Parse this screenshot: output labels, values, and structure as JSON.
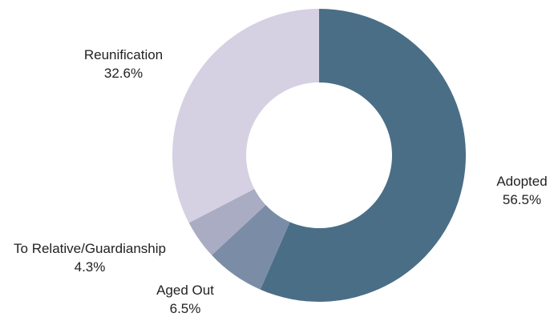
{
  "chart_data": {
    "type": "pie",
    "variant": "donut",
    "slices": [
      {
        "label": "Adopted",
        "value": 56.5,
        "value_label": "56.5%",
        "color": "#4a6e86"
      },
      {
        "label": "Aged Out",
        "value": 6.5,
        "value_label": "6.5%",
        "color": "#7b8da6"
      },
      {
        "label": "To Relative/Guardianship",
        "value": 4.3,
        "value_label": "4.3%",
        "color": "#a9acc3"
      },
      {
        "label": "Reunification",
        "value": 32.6,
        "value_label": "32.6%",
        "color": "#d5d0e2"
      }
    ],
    "start_angle": "12 o'clock",
    "direction": "clockwise",
    "legend": "none (labels beside slices)"
  }
}
